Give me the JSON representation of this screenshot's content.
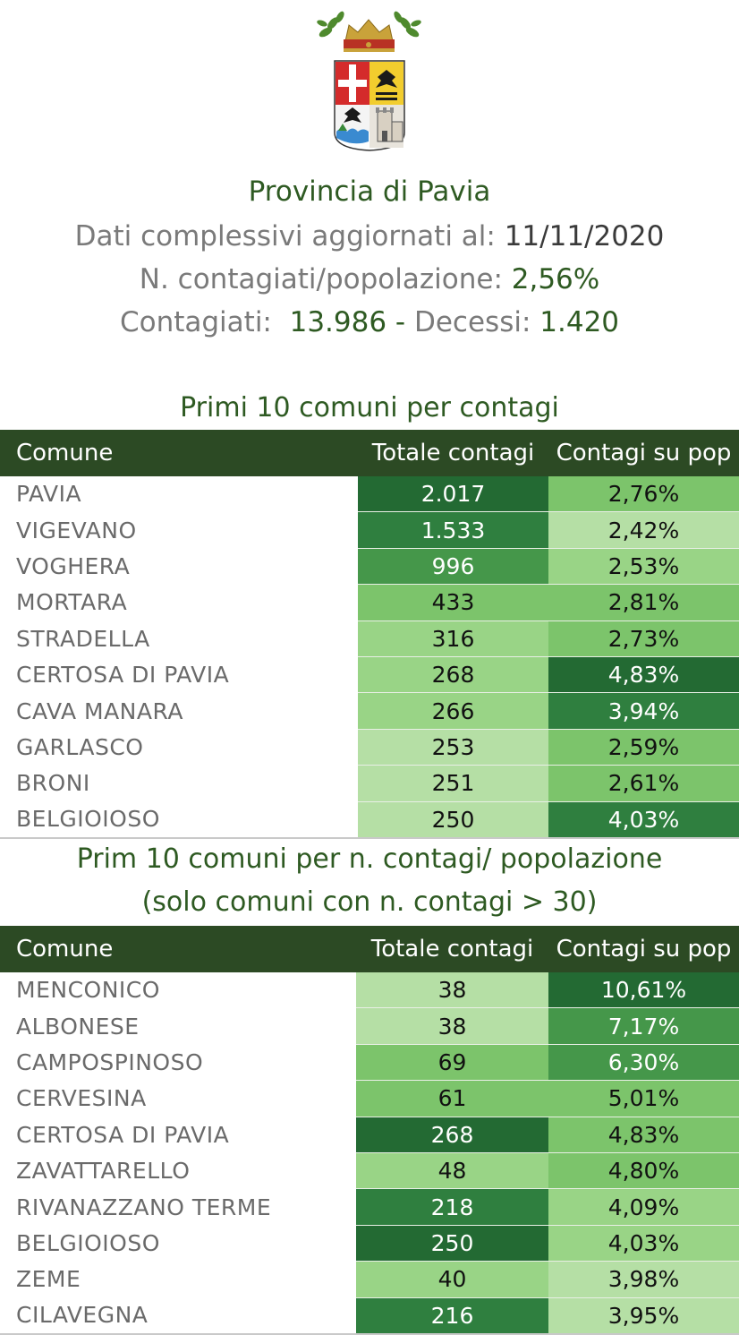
{
  "header": {
    "title": "Provincia di Pavia",
    "updated_label": "Dati complessivi aggiornati al: ",
    "updated_value": "11/11/2020",
    "ratio_label": "N. contagiati/popolazione: ",
    "ratio_value": "2,56%",
    "cases_label": "Contagiati:  ",
    "cases_value": "13.986",
    "sep": " - ",
    "deaths_label": "Decessi: ",
    "deaths_value": "1.420"
  },
  "colors": {
    "title_green": "#2e5a22",
    "table_header": "#2c4a24",
    "scale": [
      "#b5dfa5",
      "#99d486",
      "#7cc46b",
      "#5fae52",
      "#45974a",
      "#2f7f3f",
      "#236a33"
    ]
  },
  "table1": {
    "title": "Primi 10 comuni per contagi",
    "columns": [
      "Comune",
      "Totale contagi",
      "Contagi su pop"
    ],
    "rows": [
      {
        "comune": "PAVIA",
        "totale": "2.017",
        "pct": "2,76%"
      },
      {
        "comune": "VIGEVANO",
        "totale": "1.533",
        "pct": "2,42%"
      },
      {
        "comune": "VOGHERA",
        "totale": "996",
        "pct": "2,53%"
      },
      {
        "comune": "MORTARA",
        "totale": "433",
        "pct": "2,81%"
      },
      {
        "comune": "STRADELLA",
        "totale": "316",
        "pct": "2,73%"
      },
      {
        "comune": "CERTOSA DI PAVIA",
        "totale": "268",
        "pct": "4,83%"
      },
      {
        "comune": "CAVA MANARA",
        "totale": "266",
        "pct": "3,94%"
      },
      {
        "comune": "GARLASCO",
        "totale": "253",
        "pct": "2,59%"
      },
      {
        "comune": "BRONI",
        "totale": "251",
        "pct": "2,61%"
      },
      {
        "comune": "BELGIOIOSO",
        "totale": "250",
        "pct": "4,03%"
      }
    ]
  },
  "table2": {
    "title_line1": "Prim 10 comuni per n. contagi/ popolazione",
    "title_line2": "(solo comuni con n. contagi > 30)",
    "columns": [
      "Comune",
      "Totale contagi",
      "Contagi su pop"
    ],
    "rows": [
      {
        "comune": "MENCONICO",
        "totale": "38",
        "pct": "10,61%"
      },
      {
        "comune": "ALBONESE",
        "totale": "38",
        "pct": "7,17%"
      },
      {
        "comune": "CAMPOSPINOSO",
        "totale": "69",
        "pct": "6,30%"
      },
      {
        "comune": "CERVESINA",
        "totale": "61",
        "pct": "5,01%"
      },
      {
        "comune": "CERTOSA DI PAVIA",
        "totale": "268",
        "pct": "4,83%"
      },
      {
        "comune": "ZAVATTARELLO",
        "totale": "48",
        "pct": "4,80%"
      },
      {
        "comune": "RIVANAZZANO TERME",
        "totale": "218",
        "pct": "4,09%"
      },
      {
        "comune": "BELGIOIOSO",
        "totale": "250",
        "pct": "4,03%"
      },
      {
        "comune": "ZEME",
        "totale": "40",
        "pct": "3,98%"
      },
      {
        "comune": "CILAVEGNA",
        "totale": "216",
        "pct": "3,95%"
      }
    ]
  }
}
